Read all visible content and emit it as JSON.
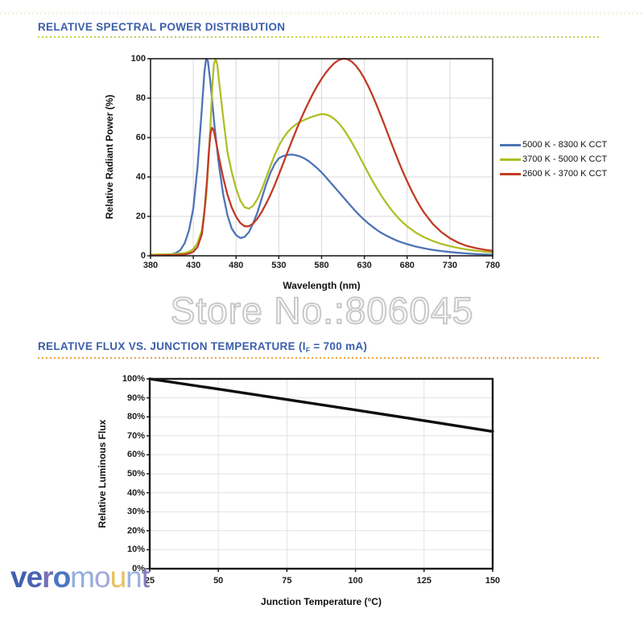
{
  "watermark": {
    "text": "Store No.:806045",
    "outline_color": "#c9c9c9"
  },
  "style": {
    "title_color": "#3b5fa9",
    "underline1_color": "#c9d14e",
    "underline2_color": "#e9a43e"
  },
  "logo": {
    "text": "veromount",
    "letters": [
      {
        "ch": "v",
        "color": "#4061ad",
        "bold": true
      },
      {
        "ch": "e",
        "color": "#4b63b0",
        "bold": true
      },
      {
        "ch": "r",
        "color": "#7670b6",
        "bold": true
      },
      {
        "ch": "o",
        "color": "#4a77c1",
        "bold": true
      },
      {
        "ch": "m",
        "color": "#92aedd",
        "bold": false
      },
      {
        "ch": "o",
        "color": "#a6a8da",
        "bold": false
      },
      {
        "ch": "u",
        "color": "#e6c159",
        "bold": false
      },
      {
        "ch": "n",
        "color": "#9cb4e3",
        "bold": false
      },
      {
        "ch": "t",
        "color": "#8a7abf",
        "bold": false
      }
    ]
  },
  "chart_data": [
    {
      "type": "line",
      "title": "RELATIVE SPECTRAL POWER DISTRIBUTION",
      "xlabel": "Wavelength (nm)",
      "ylabel": "Relative Radiant Power (%)",
      "xlim": [
        380,
        780
      ],
      "ylim": [
        0,
        100
      ],
      "xticks": [
        380,
        430,
        480,
        530,
        580,
        630,
        680,
        730,
        780
      ],
      "xtick_labels": [
        "380",
        "430",
        "480",
        "530",
        "580",
        "630",
        "680",
        "730",
        "780"
      ],
      "yticks": [
        0,
        20,
        40,
        60,
        80,
        100
      ],
      "ytick_labels": [
        "0",
        "20",
        "40",
        "60",
        "80",
        "100"
      ],
      "grid": true,
      "grid_color": "#d9d9d9",
      "axis_color": "#1f1f1f",
      "border_width": 1.6,
      "legend": true,
      "legend_position": "right",
      "series": [
        {
          "name": "5000 K - 8300 K CCT",
          "color": "#4e74b5",
          "width": 2.3,
          "points": [
            [
              380,
              0.3
            ],
            [
              395,
              0.4
            ],
            [
              405,
              0.8
            ],
            [
              410,
              1.5
            ],
            [
              415,
              3
            ],
            [
              420,
              6.5
            ],
            [
              425,
              13
            ],
            [
              430,
              24
            ],
            [
              435,
              45
            ],
            [
              440,
              75
            ],
            [
              443,
              93
            ],
            [
              445,
              100
            ],
            [
              447,
              99
            ],
            [
              450,
              88
            ],
            [
              455,
              65
            ],
            [
              460,
              46
            ],
            [
              465,
              31
            ],
            [
              470,
              20.5
            ],
            [
              475,
              13.8
            ],
            [
              480,
              10.5
            ],
            [
              485,
              9
            ],
            [
              490,
              9.6
            ],
            [
              495,
              12
            ],
            [
              500,
              16.5
            ],
            [
              505,
              22
            ],
            [
              510,
              29
            ],
            [
              515,
              36
            ],
            [
              520,
              42
            ],
            [
              525,
              46.5
            ],
            [
              530,
              49.5
            ],
            [
              535,
              50.6
            ],
            [
              540,
              51.2
            ],
            [
              545,
              51.4
            ],
            [
              550,
              51
            ],
            [
              555,
              50.4
            ],
            [
              560,
              49.4
            ],
            [
              565,
              48
            ],
            [
              570,
              46.3
            ],
            [
              575,
              44.4
            ],
            [
              580,
              42.3
            ],
            [
              585,
              39.9
            ],
            [
              590,
              37.4
            ],
            [
              595,
              34.9
            ],
            [
              600,
              32.4
            ],
            [
              605,
              29.9
            ],
            [
              610,
              27.4
            ],
            [
              615,
              24.9
            ],
            [
              620,
              22.5
            ],
            [
              625,
              20.3
            ],
            [
              630,
              18.2
            ],
            [
              635,
              16.3
            ],
            [
              640,
              14.6
            ],
            [
              645,
              13
            ],
            [
              650,
              11.6
            ],
            [
              655,
              10.4
            ],
            [
              660,
              9.3
            ],
            [
              665,
              8.3
            ],
            [
              670,
              7.4
            ],
            [
              675,
              6.6
            ],
            [
              680,
              5.9
            ],
            [
              690,
              4.7
            ],
            [
              700,
              3.8
            ],
            [
              710,
              3
            ],
            [
              720,
              2.4
            ],
            [
              730,
              1.9
            ],
            [
              740,
              1.5
            ],
            [
              750,
              1.2
            ],
            [
              760,
              0.9
            ],
            [
              770,
              0.7
            ],
            [
              780,
              0.5
            ]
          ]
        },
        {
          "name": "3700 K - 5000 K CCT",
          "color": "#afbe27",
          "width": 2.3,
          "points": [
            [
              380,
              0.6
            ],
            [
              400,
              0.8
            ],
            [
              410,
              1
            ],
            [
              420,
              1.4
            ],
            [
              425,
              2
            ],
            [
              430,
              3.4
            ],
            [
              435,
              6.5
            ],
            [
              440,
              13
            ],
            [
              445,
              30
            ],
            [
              448,
              50
            ],
            [
              450,
              66
            ],
            [
              452,
              84
            ],
            [
              454,
              97
            ],
            [
              456,
              100
            ],
            [
              458,
              97
            ],
            [
              460,
              89
            ],
            [
              465,
              70
            ],
            [
              470,
              52.5
            ],
            [
              475,
              42.5
            ],
            [
              480,
              34
            ],
            [
              485,
              28
            ],
            [
              490,
              24.6
            ],
            [
              495,
              23.9
            ],
            [
              500,
              25.4
            ],
            [
              505,
              28.8
            ],
            [
              510,
              33.6
            ],
            [
              515,
              39.4
            ],
            [
              520,
              45.4
            ],
            [
              525,
              51
            ],
            [
              530,
              55.8
            ],
            [
              535,
              59.6
            ],
            [
              540,
              62.6
            ],
            [
              545,
              64.9
            ],
            [
              550,
              66.7
            ],
            [
              555,
              68
            ],
            [
              560,
              69
            ],
            [
              565,
              69.9
            ],
            [
              570,
              70.7
            ],
            [
              575,
              71.4
            ],
            [
              580,
              71.9
            ],
            [
              585,
              71.7
            ],
            [
              590,
              70.9
            ],
            [
              595,
              69.4
            ],
            [
              600,
              67.3
            ],
            [
              605,
              64.6
            ],
            [
              610,
              61.4
            ],
            [
              615,
              57.8
            ],
            [
              620,
              53.9
            ],
            [
              625,
              49.8
            ],
            [
              630,
              45.7
            ],
            [
              635,
              41.6
            ],
            [
              640,
              37.6
            ],
            [
              645,
              33.9
            ],
            [
              650,
              30.4
            ],
            [
              655,
              27.2
            ],
            [
              660,
              24.2
            ],
            [
              665,
              21.5
            ],
            [
              670,
              19
            ],
            [
              675,
              16.9
            ],
            [
              680,
              15
            ],
            [
              690,
              11.8
            ],
            [
              700,
              9.4
            ],
            [
              710,
              7.5
            ],
            [
              720,
              6
            ],
            [
              730,
              4.9
            ],
            [
              740,
              4
            ],
            [
              750,
              3.2
            ],
            [
              760,
              2.6
            ],
            [
              770,
              2.1
            ],
            [
              780,
              1.7
            ]
          ]
        },
        {
          "name": "2600 K - 3700 K CCT",
          "color": "#c03b26",
          "width": 2.3,
          "points": [
            [
              380,
              0.2
            ],
            [
              410,
              0.4
            ],
            [
              420,
              0.7
            ],
            [
              425,
              1.1
            ],
            [
              430,
              2
            ],
            [
              435,
              4.5
            ],
            [
              440,
              11
            ],
            [
              443,
              22
            ],
            [
              446,
              38
            ],
            [
              448,
              52
            ],
            [
              450,
              62
            ],
            [
              452,
              65
            ],
            [
              454,
              63.5
            ],
            [
              456,
              59
            ],
            [
              460,
              50
            ],
            [
              465,
              39.5
            ],
            [
              470,
              31
            ],
            [
              475,
              24.5
            ],
            [
              480,
              19.8
            ],
            [
              485,
              16.6
            ],
            [
              490,
              15
            ],
            [
              495,
              15
            ],
            [
              500,
              16.4
            ],
            [
              505,
              18.9
            ],
            [
              510,
              22.3
            ],
            [
              515,
              26.3
            ],
            [
              520,
              30.8
            ],
            [
              525,
              35.8
            ],
            [
              530,
              41.2
            ],
            [
              535,
              46.8
            ],
            [
              540,
              52.4
            ],
            [
              545,
              58
            ],
            [
              550,
              63.4
            ],
            [
              555,
              68.6
            ],
            [
              560,
              73.5
            ],
            [
              565,
              78.1
            ],
            [
              570,
              82.4
            ],
            [
              575,
              86.3
            ],
            [
              580,
              89.8
            ],
            [
              585,
              92.9
            ],
            [
              590,
              95.6
            ],
            [
              595,
              97.8
            ],
            [
              600,
              99.3
            ],
            [
              605,
              100
            ],
            [
              610,
              99.8
            ],
            [
              615,
              98.6
            ],
            [
              620,
              96.5
            ],
            [
              625,
              93.6
            ],
            [
              630,
              90
            ],
            [
              635,
              85.7
            ],
            [
              640,
              80.9
            ],
            [
              645,
              75.7
            ],
            [
              650,
              70.3
            ],
            [
              655,
              64.7
            ],
            [
              660,
              59
            ],
            [
              665,
              53.4
            ],
            [
              670,
              47.9
            ],
            [
              675,
              42.7
            ],
            [
              680,
              37.8
            ],
            [
              685,
              33.2
            ],
            [
              690,
              29
            ],
            [
              695,
              25.2
            ],
            [
              700,
              21.8
            ],
            [
              710,
              16.2
            ],
            [
              720,
              12
            ],
            [
              730,
              8.9
            ],
            [
              740,
              6.6
            ],
            [
              750,
              5
            ],
            [
              760,
              3.9
            ],
            [
              770,
              3.1
            ],
            [
              780,
              2.5
            ]
          ]
        }
      ]
    },
    {
      "type": "line",
      "title_pre": "RELATIVE FLUX VS. JUNCTION TEMPERATURE (I",
      "title_sub": "F",
      "title_post": " = 700 mA)",
      "xlabel": "Junction Temperature (°C)",
      "ylabel": "Relative Luminous Flux",
      "xlim": [
        25,
        150
      ],
      "ylim": [
        0,
        100
      ],
      "xticks": [
        25,
        50,
        75,
        100,
        125,
        150
      ],
      "xtick_labels": [
        "25",
        "50",
        "75",
        "100",
        "125",
        "150"
      ],
      "yticks": [
        0,
        10,
        20,
        30,
        40,
        50,
        60,
        70,
        80,
        90,
        100
      ],
      "ytick_labels": [
        "0%",
        "10%",
        "20%",
        "30%",
        "40%",
        "50%",
        "60%",
        "70%",
        "80%",
        "90%",
        "100%"
      ],
      "grid": true,
      "grid_color": "#e2e2e2",
      "axis_color": "#1a1a1a",
      "border_width": 2.4,
      "legend": false,
      "series": [
        {
          "name": "Relative Luminous Flux",
          "color": "#0d0d0d",
          "width": 3.4,
          "points": [
            [
              25,
              100
            ],
            [
              50,
              94.6
            ],
            [
              75,
              89.1
            ],
            [
              100,
              83.6
            ],
            [
              125,
              78
            ],
            [
              150,
              72.3
            ]
          ]
        }
      ]
    }
  ]
}
